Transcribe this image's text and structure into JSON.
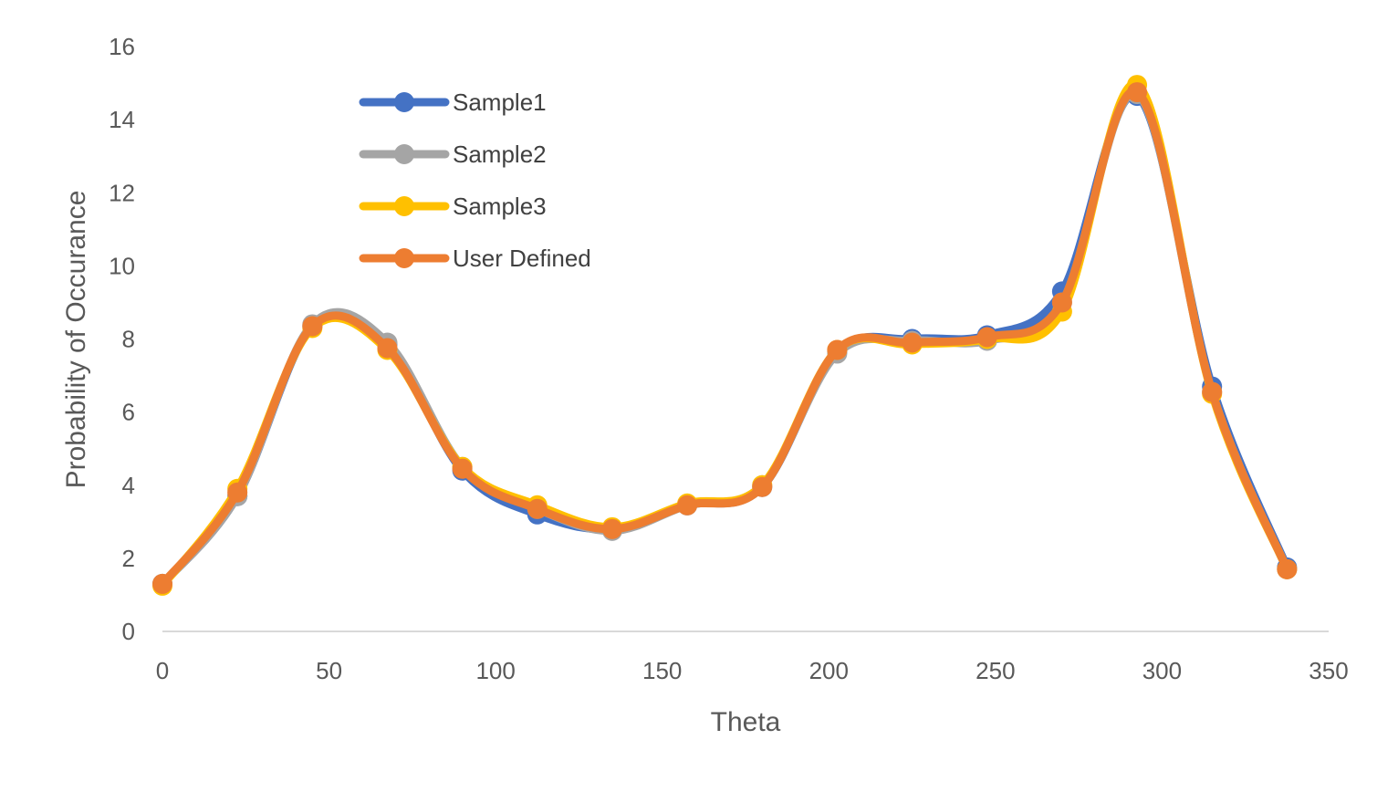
{
  "chart_data": {
    "type": "line",
    "smooth": true,
    "title": "",
    "xlabel": "Theta",
    "ylabel": "Probability of Occurance",
    "xlim": [
      0,
      350
    ],
    "ylim": [
      0,
      16
    ],
    "xticks": [
      0,
      50,
      100,
      150,
      200,
      250,
      300,
      350
    ],
    "yticks": [
      0,
      2,
      4,
      6,
      8,
      10,
      12,
      14,
      16
    ],
    "grid": false,
    "legend_position": "top-left",
    "x": [
      0,
      22.5,
      45,
      67.5,
      90,
      112.5,
      135,
      157.5,
      180,
      202.5,
      225,
      247.5,
      270,
      292.5,
      315,
      337.5
    ],
    "series": [
      {
        "name": "Sample1",
        "color": "#4472C4",
        "values": [
          1.3,
          3.7,
          8.35,
          7.85,
          4.4,
          3.2,
          2.8,
          3.45,
          3.95,
          7.65,
          8.0,
          8.1,
          9.3,
          14.65,
          6.7,
          1.75
        ]
      },
      {
        "name": "Sample2",
        "color": "#A5A5A5",
        "values": [
          1.3,
          3.7,
          8.4,
          7.9,
          4.5,
          3.35,
          2.75,
          3.45,
          4.0,
          7.6,
          7.95,
          7.95,
          9.0,
          14.7,
          6.55,
          1.7
        ]
      },
      {
        "name": "Sample3",
        "color": "#FFC000",
        "values": [
          1.25,
          3.9,
          8.3,
          7.7,
          4.5,
          3.45,
          2.85,
          3.5,
          4.0,
          7.7,
          7.85,
          8.0,
          8.75,
          14.95,
          6.5,
          1.7
        ]
      },
      {
        "name": "User Defined",
        "color": "#ED7D31",
        "values": [
          1.3,
          3.8,
          8.35,
          7.75,
          4.45,
          3.35,
          2.8,
          3.45,
          3.95,
          7.7,
          7.9,
          8.05,
          9.0,
          14.75,
          6.55,
          1.7
        ]
      }
    ]
  }
}
